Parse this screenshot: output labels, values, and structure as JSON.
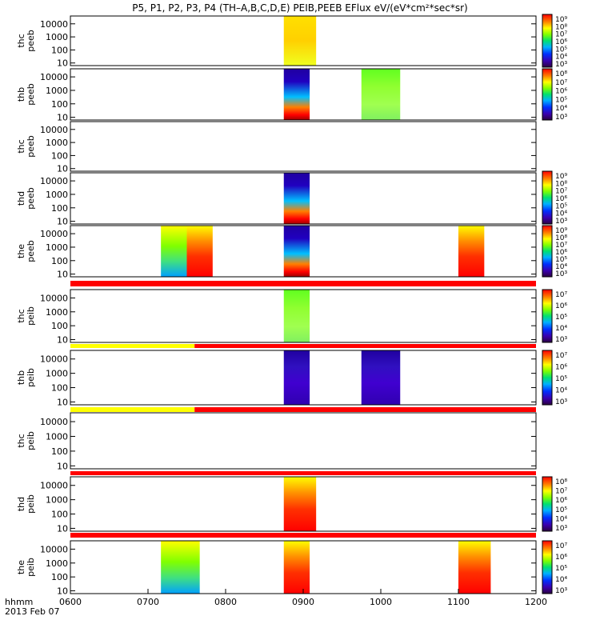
{
  "title": "P5, P1, P2, P3, P4 (TH–A,B,C,D,E) PEIB,PEEB EFlux eV/(eV*cm²*sec*sr)",
  "x_axis": {
    "label_line1": "hhmm",
    "label_line2": "2013 Feb 07",
    "tick_labels": [
      "0600",
      "0700",
      "0800",
      "0900",
      "1000",
      "1100",
      "1200"
    ]
  },
  "chart_data": {
    "type": "heatmap",
    "x_range_hhmm": [
      "0600",
      "1200"
    ],
    "y_scale": "log",
    "y_unit": "eV",
    "y_tick_labels": [
      "10",
      "100",
      "1000",
      "10000"
    ],
    "panels": [
      {
        "probe": "thc",
        "product": "peeb",
        "color_bar": [
          3,
          9
        ],
        "segments": [
          [
            "0845",
            "0910"
          ]
        ]
      },
      {
        "probe": "thb",
        "product": "peeb",
        "color_bar": [
          3,
          8
        ],
        "segments": [
          [
            "0845",
            "0905"
          ],
          [
            "0945",
            "1015"
          ]
        ]
      },
      {
        "probe": "thc",
        "product": "peeb",
        "color_bar": null,
        "segments": []
      },
      {
        "probe": "thd",
        "product": "peeb",
        "color_bar": [
          3,
          9
        ],
        "segments": [
          [
            "0845",
            "0905"
          ]
        ]
      },
      {
        "probe": "the",
        "product": "peeb",
        "color_bar": [
          3,
          9
        ],
        "segments": [
          [
            "0710",
            "0730"
          ],
          [
            "0730",
            "0750"
          ],
          [
            "0845",
            "0905"
          ],
          [
            "1100",
            "1120"
          ]
        ]
      },
      {
        "probe": "thc",
        "product": "peib",
        "color_bar": [
          3,
          7
        ],
        "segments": [
          [
            "0845",
            "0905"
          ]
        ]
      },
      {
        "probe": "thb",
        "product": "peib",
        "color_bar": [
          3,
          7
        ],
        "segments": [
          [
            "0845",
            "0905"
          ],
          [
            "0945",
            "1015"
          ]
        ]
      },
      {
        "probe": "thc",
        "product": "peib",
        "color_bar": null,
        "segments": []
      },
      {
        "probe": "thd",
        "product": "peib",
        "color_bar": [
          3,
          8
        ],
        "segments": [
          [
            "0845",
            "0910"
          ]
        ]
      },
      {
        "probe": "the",
        "product": "peib",
        "color_bar": [
          3,
          7
        ],
        "segments": [
          [
            "0710",
            "0740"
          ],
          [
            "0845",
            "0905"
          ],
          [
            "1100",
            "1125"
          ]
        ]
      }
    ],
    "colorbars": [
      {
        "labels": [
          "10⁹",
          "10⁸",
          "10⁷",
          "10⁶",
          "10⁵",
          "10⁴",
          "10³"
        ]
      },
      {
        "labels": [
          "10⁸",
          "10⁷",
          "10⁶",
          "10⁵",
          "10⁴",
          "10³"
        ]
      },
      {
        "labels": [
          "10⁹",
          "10⁸",
          "10⁷",
          "10⁶",
          "10⁵",
          "10⁴",
          "10³"
        ]
      },
      {
        "labels": [
          "10⁹",
          "10⁸",
          "10⁷",
          "10⁶",
          "10⁵",
          "10⁴",
          "10³"
        ]
      },
      {
        "labels": [
          "10⁷",
          "10⁶",
          "10⁵",
          "10⁴",
          "10³"
        ]
      },
      {
        "labels": [
          "10⁷",
          "10⁶",
          "10⁵",
          "10⁴",
          "10³"
        ]
      },
      {
        "labels": [
          "10⁸",
          "10⁷",
          "10⁶",
          "10⁵",
          "10⁴",
          "10³"
        ]
      },
      {
        "labels": [
          "10⁷",
          "10⁶",
          "10⁵",
          "10⁴",
          "10³"
        ]
      }
    ],
    "mode_bars": [
      {
        "after_panel": 4,
        "segments": [
          {
            "from": "0600",
            "to": "1200",
            "color": "#ff0000"
          }
        ]
      },
      {
        "after_panel": 5,
        "segments": [
          {
            "from": "0600",
            "to": "0736",
            "color": "#ffff00"
          },
          {
            "from": "0736",
            "to": "1200",
            "color": "#ff0000"
          }
        ]
      },
      {
        "after_panel": 6,
        "segments": [
          {
            "from": "0600",
            "to": "0736",
            "color": "#ffff00"
          },
          {
            "from": "0736",
            "to": "1200",
            "color": "#ff0000"
          }
        ]
      },
      {
        "after_panel": 7,
        "segments": [
          {
            "from": "0600",
            "to": "1200",
            "color": "#ff0000"
          }
        ]
      },
      {
        "after_panel": 8,
        "segments": [
          {
            "from": "0600",
            "to": "1200",
            "color": "#ff0000"
          }
        ]
      }
    ]
  }
}
